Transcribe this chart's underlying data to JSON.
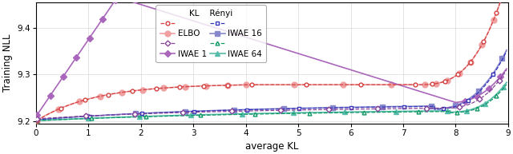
{
  "xlabel": "average KL",
  "ylabel": "Training NLL",
  "xlim": [
    0,
    9.0
  ],
  "ylim": [
    9.195,
    9.455
  ],
  "yticks": [
    9.2,
    9.3,
    9.4
  ],
  "xticks": [
    0,
    1,
    2,
    3,
    4,
    5,
    6,
    7,
    8,
    9
  ],
  "color_elbo_kl": "#d44040",
  "color_elbo_renyi": "#f0a0a0",
  "color_iwae1_kl": "#884499",
  "color_iwae1_renyi": "#aa66bb",
  "color_iwae16_kl": "#3333bb",
  "color_iwae16_renyi": "#8888cc",
  "color_iwae64_kl": "#119966",
  "color_iwae64_renyi": "#55bbaa"
}
